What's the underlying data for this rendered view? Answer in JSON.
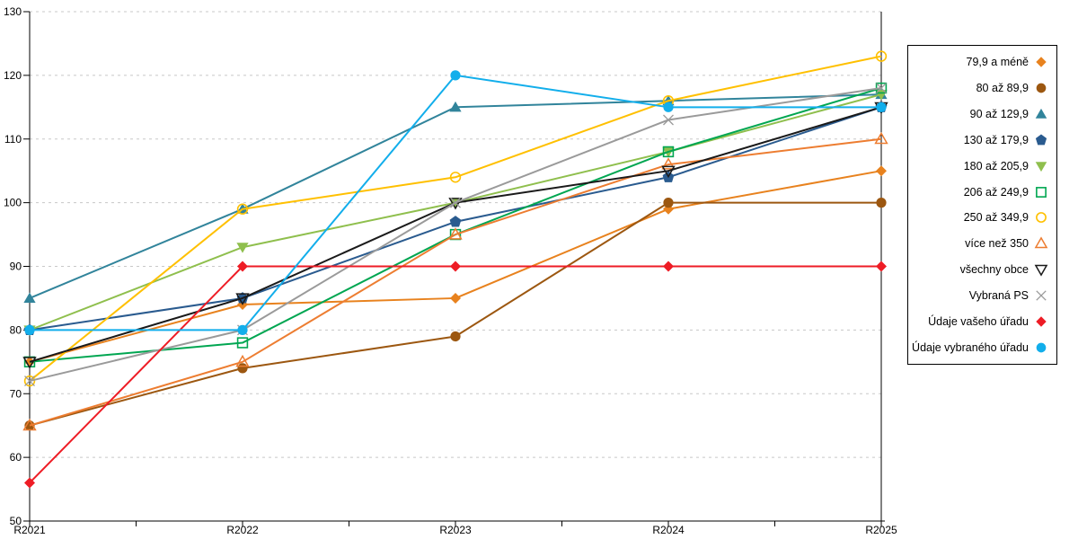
{
  "chart_data": {
    "type": "line",
    "categories": [
      "R2021",
      "R2022",
      "R2023",
      "R2024",
      "R2025"
    ],
    "yticks": [
      50,
      60,
      70,
      80,
      90,
      100,
      110,
      120,
      130
    ],
    "ylim": [
      50,
      130
    ],
    "grid": "horizontal-dashed",
    "grid_color": "#c8c8c8",
    "axis_color": "#000000",
    "legend_position": "right",
    "series": [
      {
        "name": "79,9 a méně",
        "marker": "diamond",
        "color": "#E8821E",
        "values": [
          75,
          84,
          85,
          99,
          105
        ]
      },
      {
        "name": "80 až 89,9",
        "marker": "circle",
        "color": "#9C5710",
        "values": [
          65,
          74,
          79,
          100,
          100
        ]
      },
      {
        "name": "90 až 129,9",
        "marker": "triangle",
        "color": "#31849B",
        "values": [
          85,
          99,
          115,
          116,
          117
        ]
      },
      {
        "name": "130 až 179,9",
        "marker": "pentagon",
        "color": "#2A5B8F",
        "values": [
          80,
          85,
          97,
          104,
          115
        ]
      },
      {
        "name": "180 až 205,9",
        "marker": "triangle-down",
        "color": "#8FBF4D",
        "values": [
          80,
          93,
          100,
          108,
          117
        ]
      },
      {
        "name": "206 až 249,9",
        "marker": "square-open",
        "color": "#00A651",
        "values": [
          75,
          78,
          95,
          108,
          118
        ]
      },
      {
        "name": "250 až 349,9",
        "marker": "circle-open",
        "color": "#FFC000",
        "values": [
          72,
          99,
          104,
          116,
          123
        ]
      },
      {
        "name": "více než 350",
        "marker": "triangle-open",
        "color": "#ED7D31",
        "values": [
          65,
          75,
          95,
          106,
          110
        ]
      },
      {
        "name": "všechny obce",
        "marker": "triangle-down-open",
        "color": "#1A1A1A",
        "values": [
          75,
          85,
          100,
          105,
          115
        ]
      },
      {
        "name": "Vybraná PS",
        "marker": "x",
        "color": "#9A9A9A",
        "values": [
          72,
          80,
          100,
          113,
          118
        ]
      },
      {
        "name": "Údaje vašeho úřadu",
        "marker": "diamond",
        "color": "#EE1C25",
        "values": [
          56,
          90,
          90,
          90,
          90
        ]
      },
      {
        "name": "Údaje vybraného úřadu",
        "marker": "circle",
        "color": "#12AEEB",
        "values": [
          80,
          80,
          120,
          115,
          115
        ]
      }
    ]
  },
  "legend": {
    "border_color": "#000000",
    "background": "#ffffff"
  }
}
